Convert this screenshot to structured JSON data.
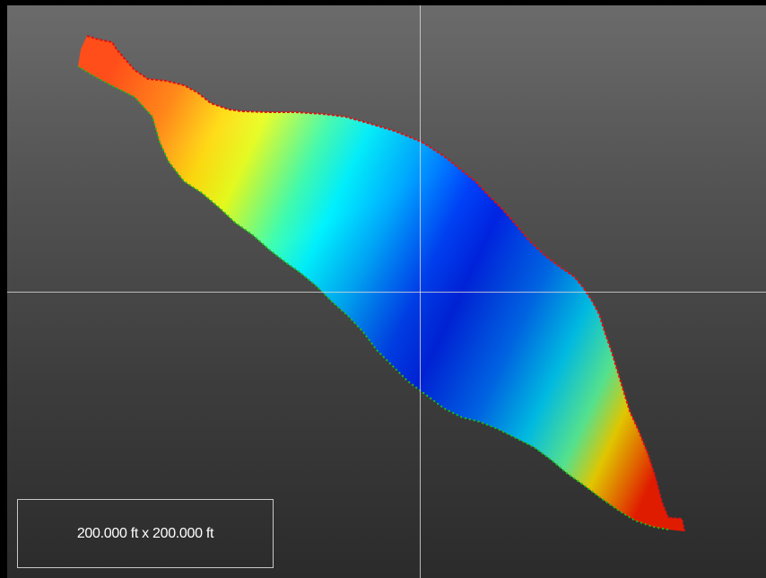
{
  "viewport": {
    "view_type": "plan view surface model",
    "colormap": "elevation rainbow (red-orange high, blue low)",
    "colors": {
      "background_top": "#6b6b6b",
      "background_bottom": "#2b2b2b",
      "frame": "#000000",
      "crosshair": "#d9d9d9",
      "edge_top": "#e01010",
      "edge_bottom": "#18c018"
    },
    "crosshair": "on"
  },
  "scale": {
    "label": "200.000 ft x 200.000 ft"
  }
}
